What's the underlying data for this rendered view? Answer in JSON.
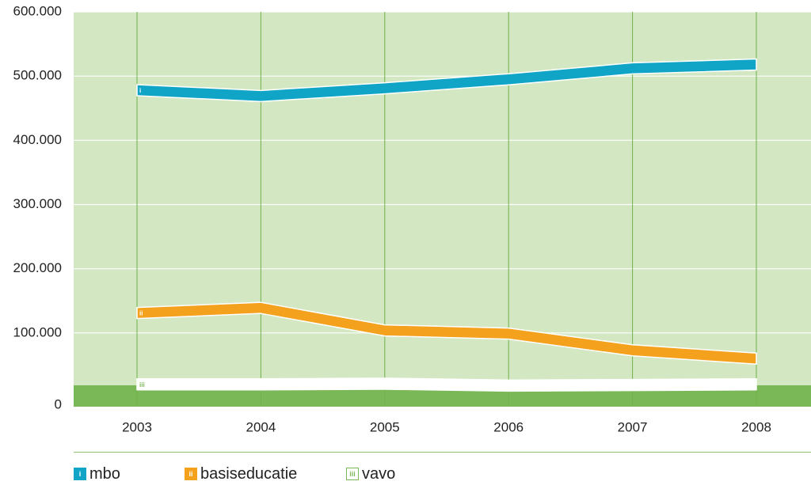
{
  "chart_data": {
    "type": "line",
    "x": [
      "2003",
      "2004",
      "2005",
      "2006",
      "2007",
      "2008"
    ],
    "series": [
      {
        "name": "mbo",
        "marker": "i",
        "color": "#10a5c6",
        "values": [
          478000,
          469000,
          481000,
          495000,
          512000,
          518000
        ]
      },
      {
        "name": "basiseducatie",
        "marker": "ii",
        "color": "#f4a11e",
        "values": [
          131000,
          139000,
          104000,
          99000,
          73000,
          60000
        ]
      },
      {
        "name": "vavo",
        "marker": "iii",
        "color": "#ffffff",
        "values": [
          20000,
          20000,
          21000,
          18000,
          19000,
          20000
        ]
      }
    ],
    "y_ticks": [
      "600.000",
      "500.000",
      "400.000",
      "300.000",
      "200.000",
      "100.000",
      "0"
    ],
    "ylim": [
      0,
      600000
    ],
    "grid": true,
    "legend_position": "bottom",
    "colors": {
      "plot_bg": "#d2e7c2",
      "baseline_band": "#7ab857",
      "grid": "#ffffff",
      "vline": "#6fb24a"
    }
  }
}
